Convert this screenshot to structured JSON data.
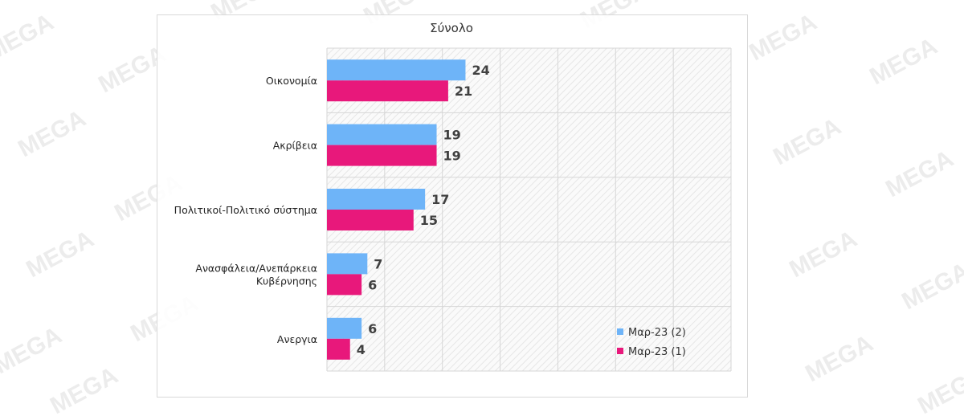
{
  "watermark": "MEGA",
  "colors": {
    "series1": "#6eb4f8",
    "series2": "#e8187b",
    "grid": "#d4d4d4",
    "hatch": "#ececec"
  },
  "chart_data": {
    "type": "bar",
    "orientation": "horizontal",
    "title": "Σύνολο",
    "categories": [
      "Οικονομία",
      "Ακρίβεια",
      "Πολιτικοί-Πολιτικό σύστημα",
      "Ανασφάλεια/Ανεπάρκεια Κυβέρνησης",
      "Ανεργια"
    ],
    "series": [
      {
        "name": "Μαρ-23 (2)",
        "color": "#6eb4f8",
        "values": [
          24,
          19,
          17,
          7,
          6
        ]
      },
      {
        "name": "Μαρ-23 (1)",
        "color": "#e8187b",
        "values": [
          21,
          19,
          15,
          6,
          4
        ]
      }
    ],
    "xlim": [
      0,
      70
    ],
    "grid": true,
    "legend": "bottom-right"
  }
}
